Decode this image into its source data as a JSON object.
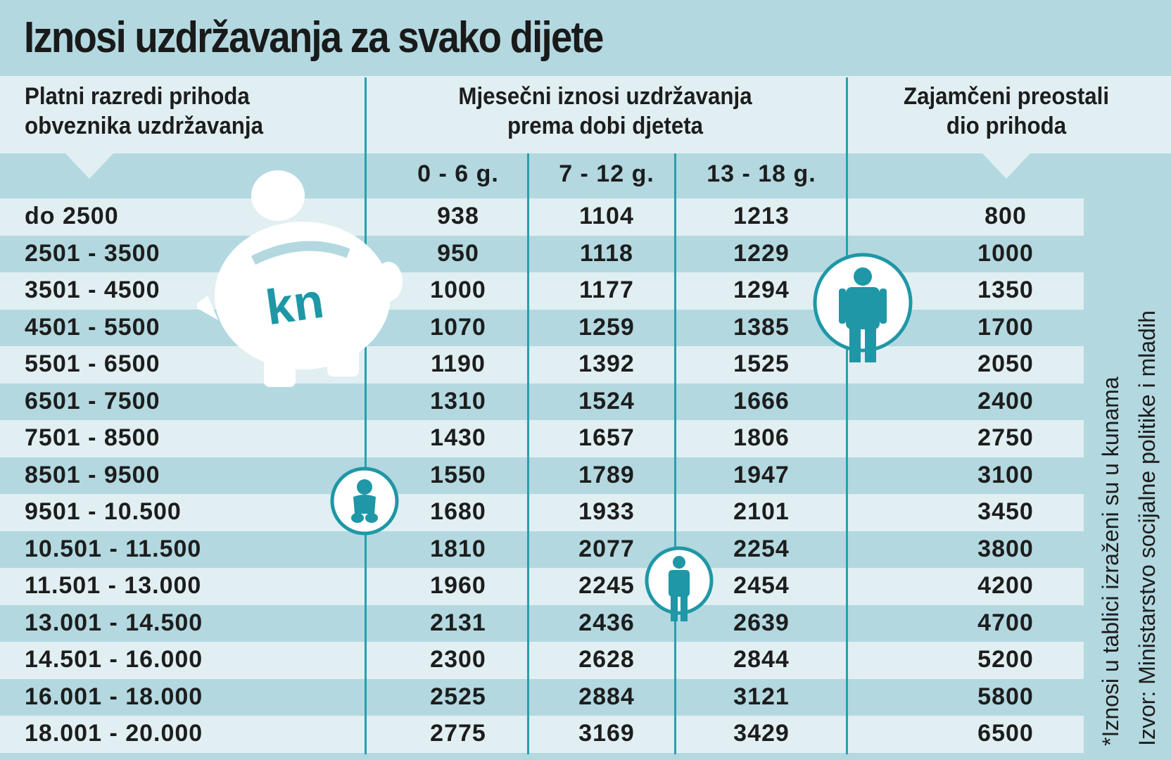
{
  "title": "Iznosi uzdržavanja za svako dijete",
  "headers": {
    "income_line1": "Platni razredi prihoda",
    "income_line2": "obveznika uzdržavanja",
    "monthly_line1": "Mjesečni iznosi uzdržavanja",
    "monthly_line2": "prema dobi djeteta",
    "guaranteed_line1": "Zajamčeni preostali",
    "guaranteed_line2": "dio prihoda"
  },
  "age_groups": [
    "0 - 6 g.",
    "7 - 12 g.",
    "13 - 18 g."
  ],
  "rows": [
    [
      "do 2500",
      "938",
      "1104",
      "1213",
      "800"
    ],
    [
      "2501 - 3500",
      "950",
      "1118",
      "1229",
      "1000"
    ],
    [
      "3501 - 4500",
      "1000",
      "1177",
      "1294",
      "1350"
    ],
    [
      "4501 - 5500",
      "1070",
      "1259",
      "1385",
      "1700"
    ],
    [
      "5501 - 6500",
      "1190",
      "1392",
      "1525",
      "2050"
    ],
    [
      "6501 - 7500",
      "1310",
      "1524",
      "1666",
      "2400"
    ],
    [
      "7501 - 8500",
      "1430",
      "1657",
      "1806",
      "2750"
    ],
    [
      "8501 - 9500",
      "1550",
      "1789",
      "1947",
      "3100"
    ],
    [
      "9501 - 10.500",
      "1680",
      "1933",
      "2101",
      "3450"
    ],
    [
      "10.501 - 11.500",
      "1810",
      "2077",
      "2254",
      "3800"
    ],
    [
      "11.501 - 13.000",
      "1960",
      "2245",
      "2454",
      "4200"
    ],
    [
      "13.001 - 14.500",
      "2131",
      "2436",
      "2639",
      "4700"
    ],
    [
      "14.501 - 16.000",
      "2300",
      "2628",
      "2844",
      "5200"
    ],
    [
      "16.001 - 18.000",
      "2525",
      "2884",
      "3121",
      "5800"
    ],
    [
      "18.001 - 20.000",
      "2775",
      "3169",
      "3429",
      "6500"
    ]
  ],
  "piggy_label": "kn",
  "footnote": "*Iznosi u tablici izraženi su u kunama",
  "source": "Izvor: Ministarstvo socijalne politike i mladih",
  "colors": {
    "teal": "#1f97a6",
    "dark_band": "#b3d8e0",
    "light_band": "#e1eff2"
  }
}
